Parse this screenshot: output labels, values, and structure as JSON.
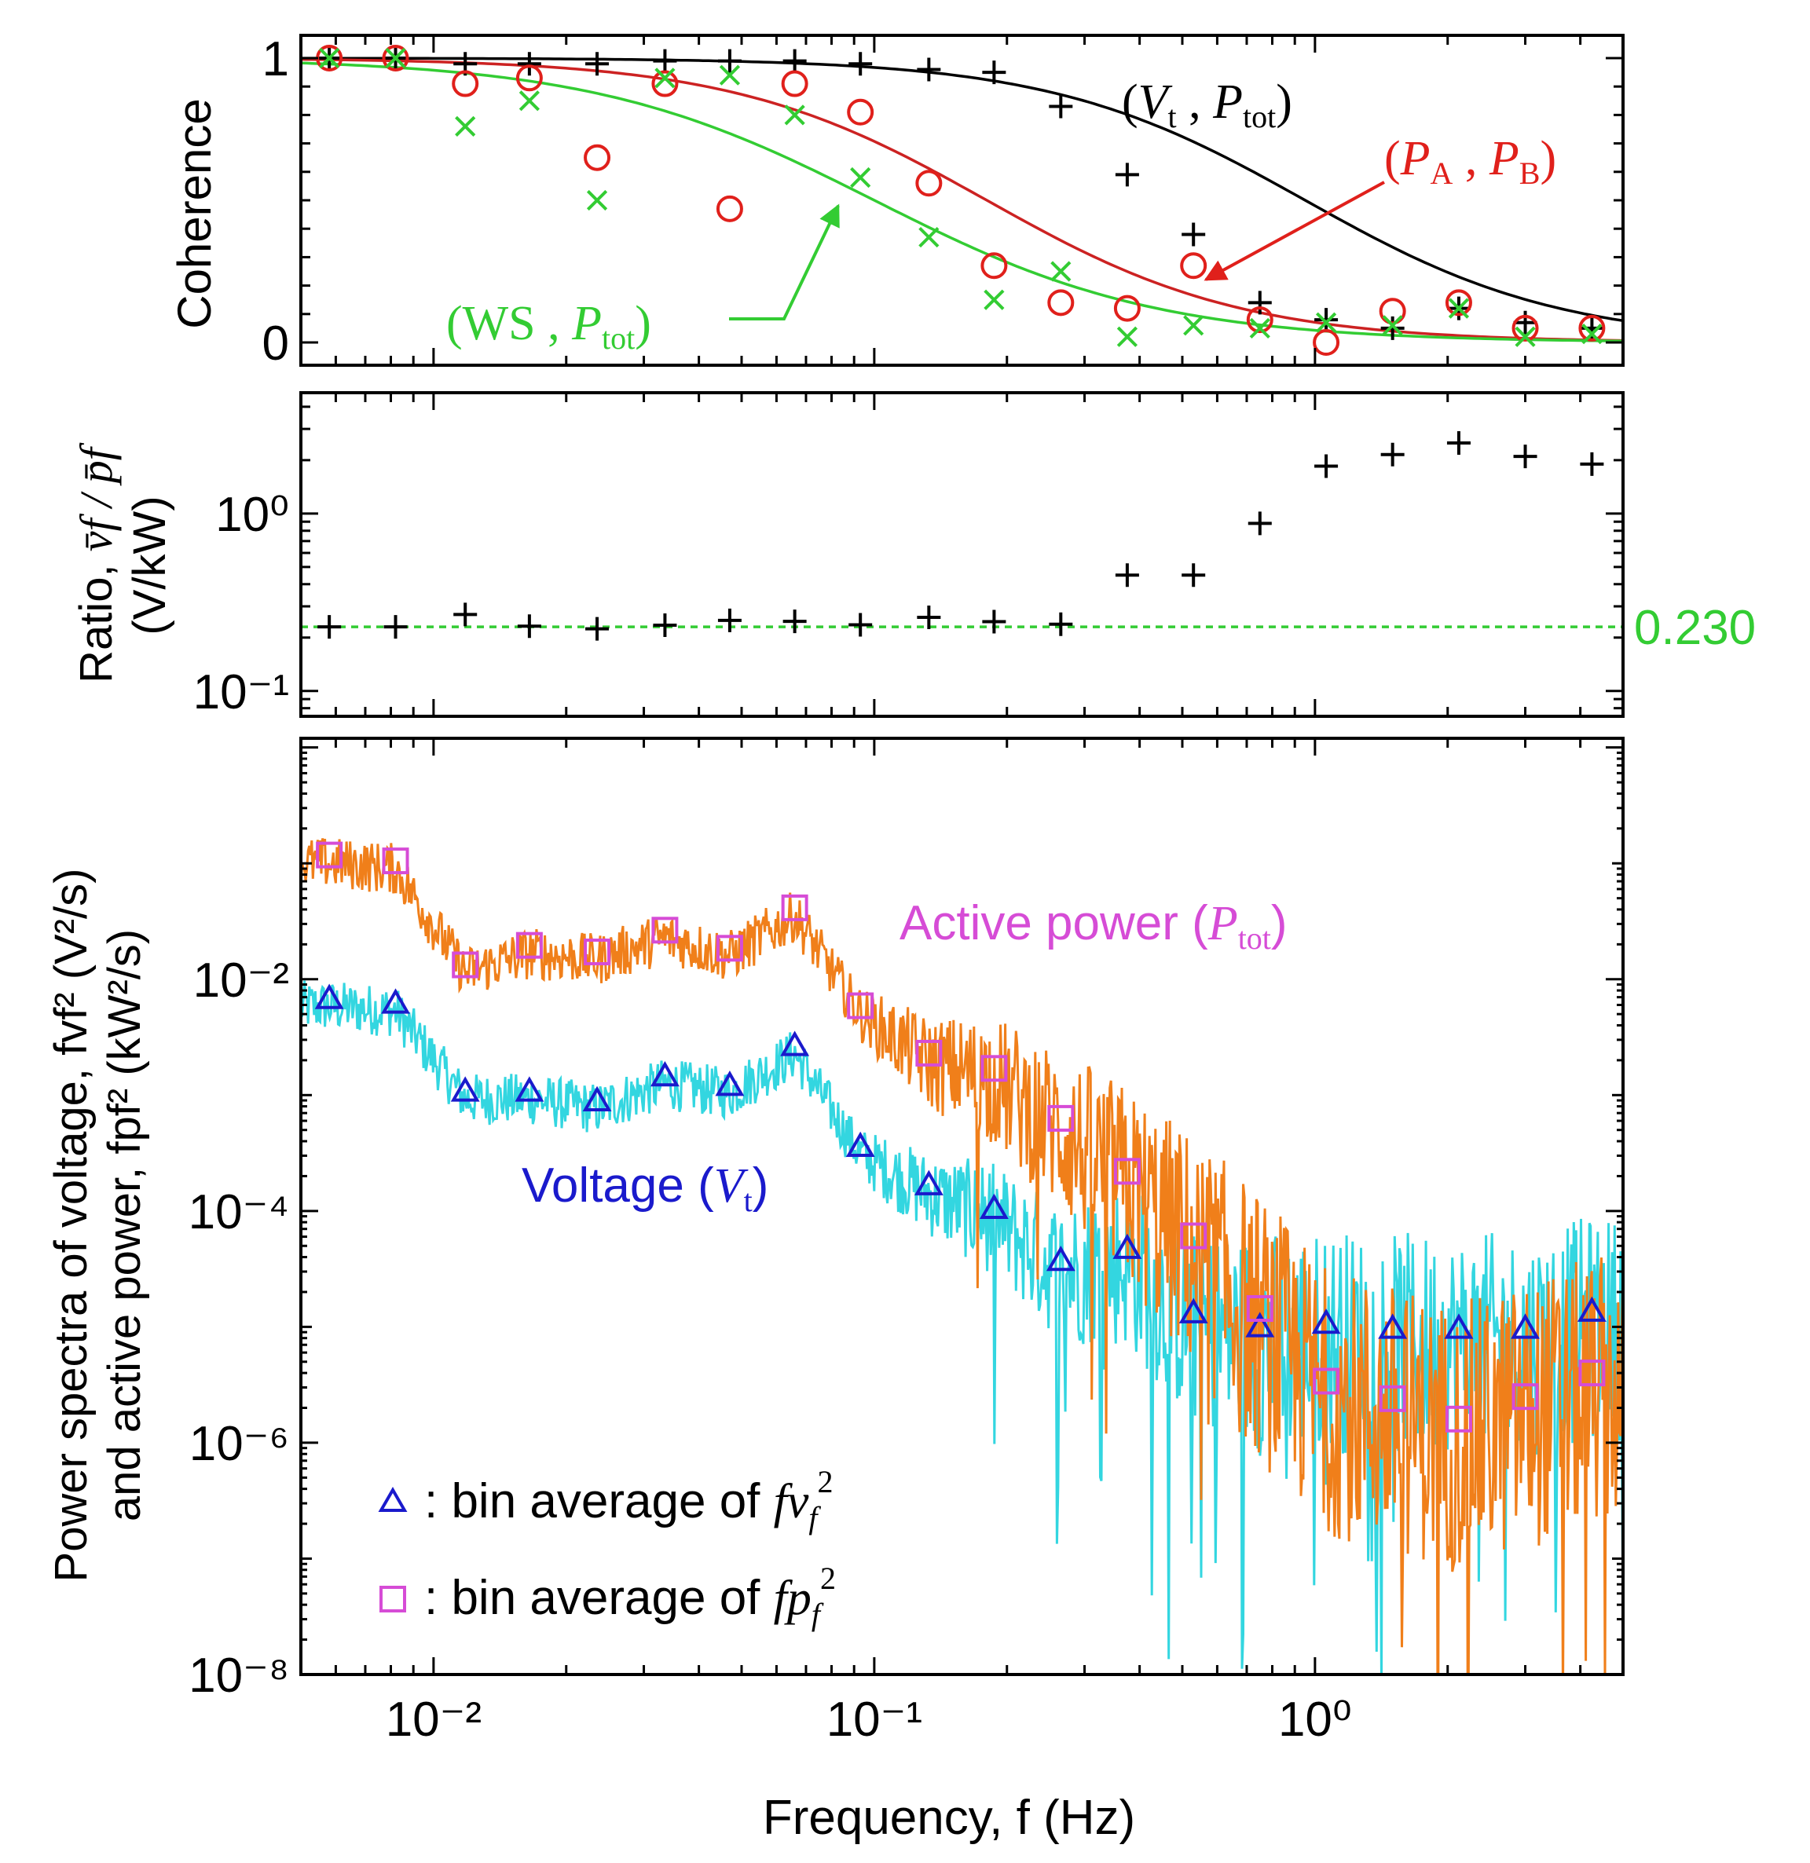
{
  "chart_data": [
    {
      "panel": "coherence",
      "type": "scatter",
      "ylabel": "Coherence",
      "xscale": "log",
      "xlim": [
        0.005,
        5.0
      ],
      "ylim": [
        -0.08,
        1.08
      ],
      "yticks": [
        0,
        1
      ],
      "ytick_labels": [
        "0",
        "1"
      ],
      "x": [
        0.0058,
        0.0082,
        0.0118,
        0.0165,
        0.0235,
        0.0335,
        0.047,
        0.066,
        0.093,
        0.133,
        0.187,
        0.265,
        0.375,
        0.53,
        0.75,
        1.06,
        1.5,
        2.12,
        3.0,
        4.25
      ],
      "series": [
        {
          "name": "(Vt , Ptot)",
          "marker": "plus",
          "color": "#000000",
          "values": [
            1.0,
            1.0,
            0.98,
            0.98,
            0.98,
            0.99,
            0.99,
            0.99,
            0.98,
            0.96,
            0.95,
            0.83,
            0.59,
            0.38,
            0.14,
            0.08,
            0.05,
            0.12,
            0.07,
            0.05
          ]
        },
        {
          "name": "(PA , PB)",
          "marker": "circle",
          "color": "#e0201b",
          "values": [
            1.0,
            1.0,
            0.91,
            0.93,
            0.65,
            0.91,
            0.47,
            0.91,
            0.81,
            0.56,
            0.27,
            0.14,
            0.12,
            0.27,
            0.08,
            0.0,
            0.11,
            0.14,
            0.05,
            0.05
          ]
        },
        {
          "name": "(WS , Ptot)",
          "marker": "x",
          "color": "#33cc33",
          "values": [
            1.0,
            1.0,
            0.76,
            0.85,
            0.5,
            0.93,
            0.94,
            0.8,
            0.58,
            0.37,
            0.15,
            0.25,
            0.02,
            0.06,
            0.05,
            0.07,
            0.06,
            0.12,
            0.02,
            0.03
          ]
        }
      ],
      "fits": [
        {
          "name": "(Vt , Ptot)",
          "color": "#000000",
          "f0": 0.95,
          "n": 1.5
        },
        {
          "name": "(PA , PB)",
          "color": "#cc2222",
          "f0": 0.18,
          "n": 1.5
        },
        {
          "name": "(WS , Ptot)",
          "color": "#33cc33",
          "f0": 0.1,
          "n": 1.35
        }
      ],
      "annotations": [
        {
          "label": "(Vt , Ptot)",
          "base": "V",
          "sub": "t",
          "base2": "P",
          "sub2": "tot",
          "color": "#000000",
          "arrow": false
        },
        {
          "label": "(PA , PB)",
          "base": "P",
          "sub": "A",
          "base2": "P",
          "sub2": "B",
          "color": "#e0201b",
          "arrow": true
        },
        {
          "label": "(WS , Ptot)",
          "base": "WS",
          "sub": "",
          "base2": "P",
          "sub2": "tot",
          "color": "#33cc33",
          "arrow": true
        }
      ]
    },
    {
      "panel": "ratio",
      "type": "scatter",
      "ylabel_line1": "Ratio,",
      "ylabel_ratio": "v̄f / p̄f",
      "ylabel_line2": "(V/kW)",
      "xscale": "log",
      "yscale": "log",
      "xlim": [
        0.005,
        5.0
      ],
      "ylim": [
        0.072,
        4.8
      ],
      "ytick_labels": [
        "10⁰",
        "10⁻¹"
      ],
      "x": [
        0.0058,
        0.0082,
        0.0118,
        0.0165,
        0.0235,
        0.0335,
        0.047,
        0.066,
        0.093,
        0.133,
        0.187,
        0.265,
        0.375,
        0.53,
        0.75,
        1.06,
        1.5,
        2.12,
        3.0,
        4.25
      ],
      "series": [
        {
          "name": "ratio",
          "marker": "plus",
          "color": "#000000",
          "values": [
            0.23,
            0.23,
            0.27,
            0.232,
            0.224,
            0.235,
            0.25,
            0.247,
            0.236,
            0.26,
            0.246,
            0.238,
            0.45,
            0.45,
            0.88,
            1.85,
            2.15,
            2.5,
            2.1,
            1.9
          ]
        }
      ],
      "reference_line": {
        "value": 0.23,
        "label": "0.230",
        "color": "#33cc33",
        "style": "dashed"
      }
    },
    {
      "panel": "spectra",
      "type": "line",
      "ylabel_line1": "Power spectra of voltage, fvf² (V²/s)",
      "ylabel_line2": "and active power, fpf² (kW²/s)",
      "xlabel": "Frequency, f (Hz)",
      "xscale": "log",
      "yscale": "log",
      "xlim": [
        0.005,
        5.0
      ],
      "ylim": [
        1e-08,
        1.2
      ],
      "ytick_labels": [
        "10⁻²",
        "10⁻⁴",
        "10⁻⁶",
        "10⁻⁸"
      ],
      "xtick_labels": [
        "10⁻²",
        "10⁻¹",
        "10⁰"
      ],
      "x": [
        0.0058,
        0.0082,
        0.0118,
        0.0165,
        0.0235,
        0.0335,
        0.047,
        0.066,
        0.093,
        0.133,
        0.187,
        0.265,
        0.375,
        0.53,
        0.75,
        1.06,
        1.5,
        2.12,
        3.0,
        4.25
      ],
      "series": [
        {
          "name": "Voltage (Vt) bin average",
          "marker": "triangle",
          "color": "#1a1acc",
          "values": [
            0.0068,
            0.0062,
            0.00108,
            0.00108,
            0.00089,
            0.00146,
            0.00121,
            0.00267,
            0.00036,
            0.000168,
            0.000105,
            3.73e-05,
            4.74e-05,
            1.32e-05,
            1e-05,
            1.07e-05,
            9.7e-06,
            9.7e-06,
            9.7e-06,
            1.36e-05
          ]
        },
        {
          "name": "Active power (Ptot) bin average",
          "marker": "square",
          "color": "#d64cd6",
          "values": [
            0.118,
            0.105,
            0.0133,
            0.0196,
            0.0172,
            0.0265,
            0.0185,
            0.0413,
            0.0059,
            0.0023,
            0.0017,
            0.00063,
            0.00022,
            6.1e-05,
            1.44e-05,
            3.4e-06,
            2.4e-06,
            1.6e-06,
            2.5e-06,
            4e-06
          ]
        }
      ],
      "lines": [
        {
          "name": "Voltage (Vt)",
          "color": "#33d6e0"
        },
        {
          "name": "Active power (Ptot)",
          "color": "#f07f1a"
        }
      ],
      "labels": {
        "active_power": "Active power",
        "voltage": "Voltage",
        "p_sym": "P",
        "p_sub": "tot",
        "v_sym": "V",
        "v_sub": "t"
      },
      "legend": [
        {
          "marker": "triangle",
          "color": "#1a1acc",
          "text": ": bin average of",
          "sym": "fv",
          "sub": "f",
          "sup": "2"
        },
        {
          "marker": "square",
          "color": "#d64cd6",
          "text": ": bin average of",
          "sym": "fp",
          "sub": "f",
          "sup": "2"
        }
      ]
    }
  ]
}
